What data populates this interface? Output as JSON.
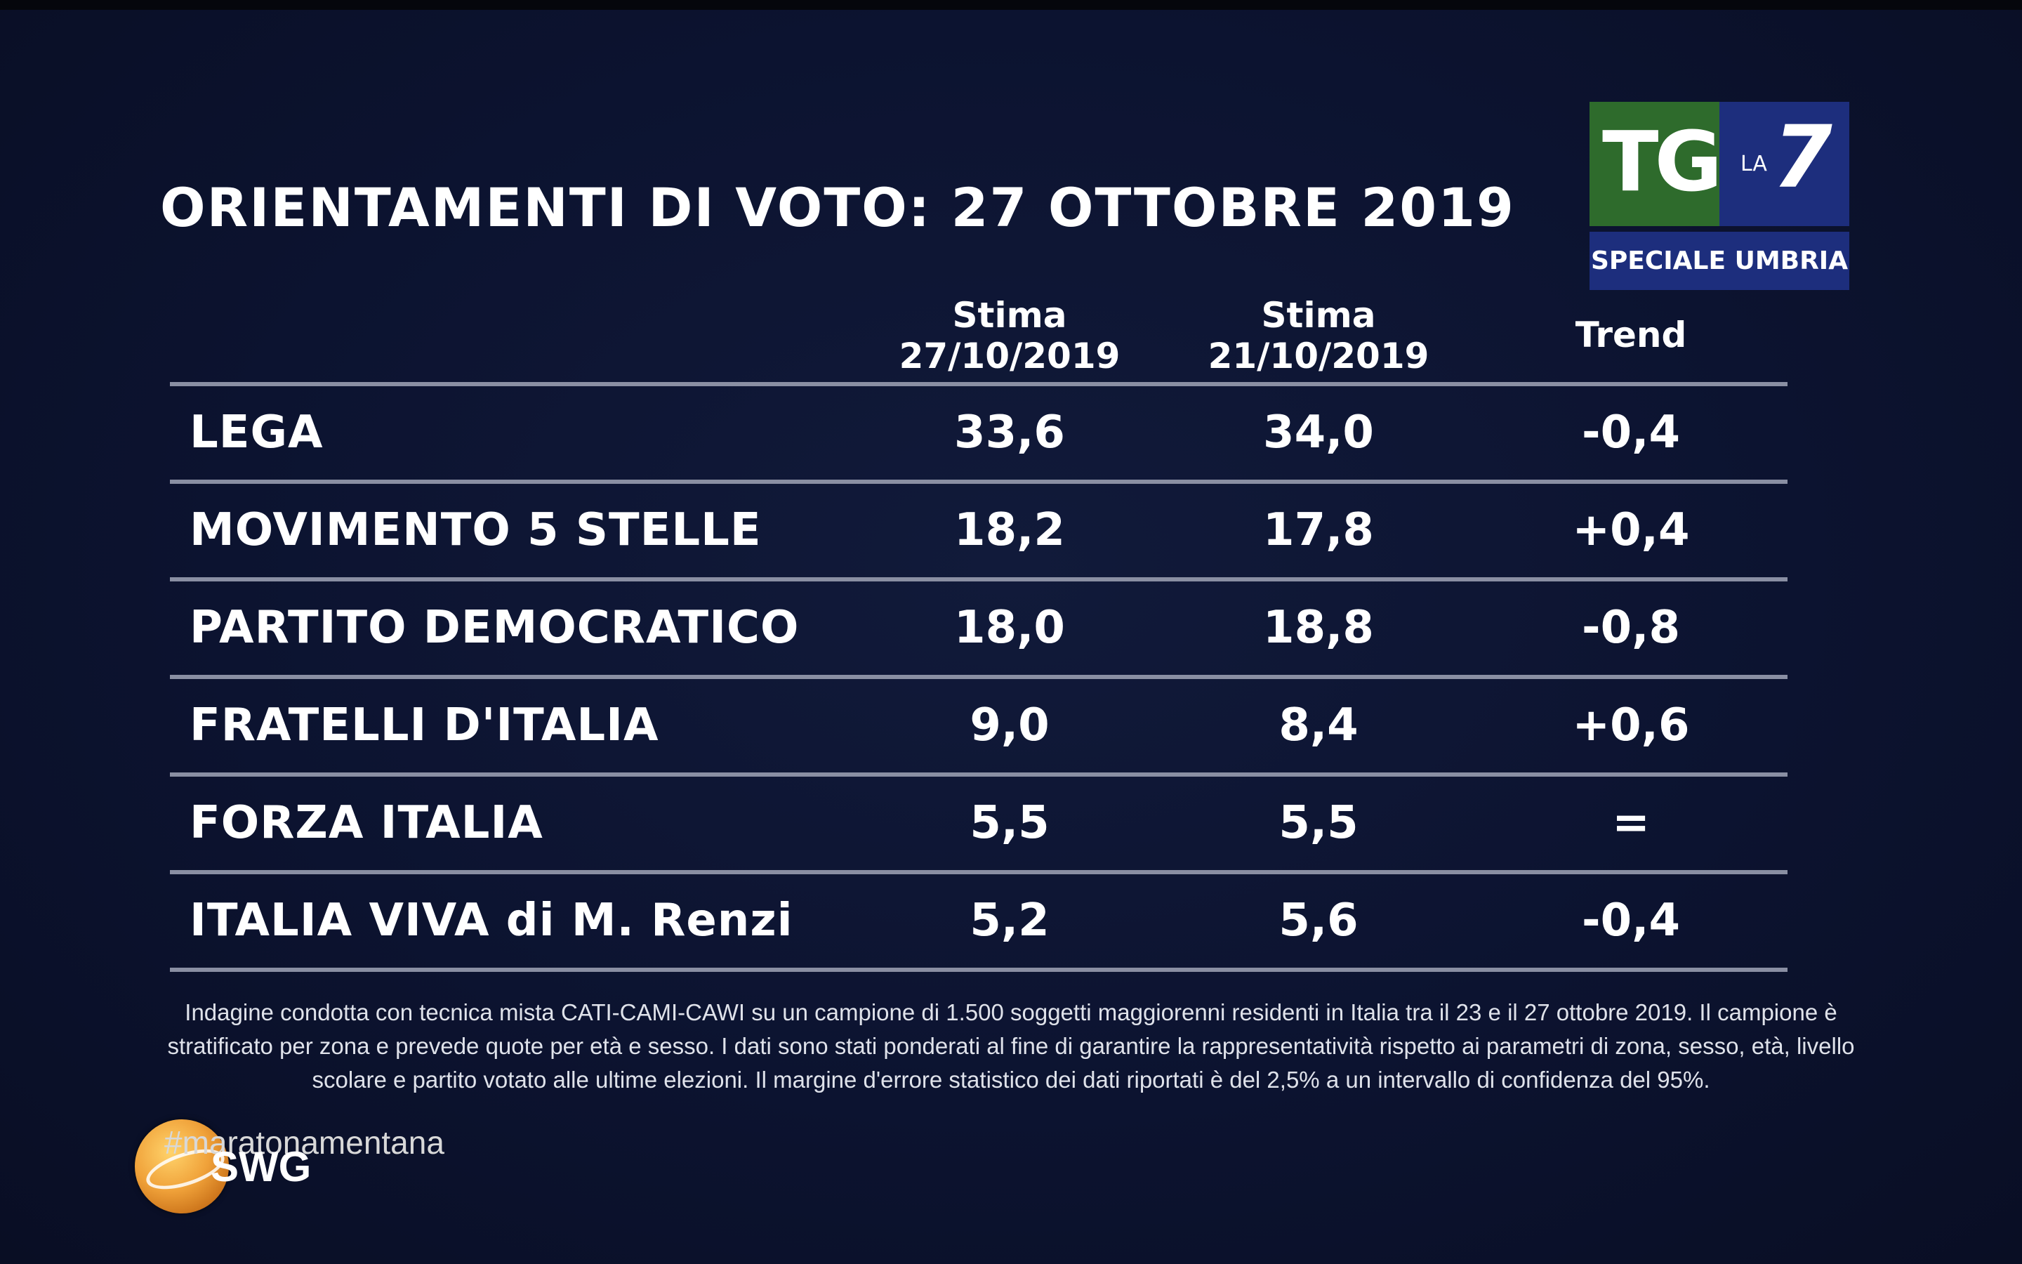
{
  "title": "ORIENTAMENTI DI VOTO: 27 OTTOBRE 2019",
  "logo": {
    "tg": "TG",
    "la": "LA",
    "seven": "7",
    "subtitle": "SPECIALE UMBRIA",
    "colors": {
      "green": "#2e6b2c",
      "blue": "#1d2e7d"
    }
  },
  "columns": [
    {
      "line1": "Stima",
      "line2": "27/10/2019"
    },
    {
      "line1": "Stima",
      "line2": "21/10/2019"
    },
    {
      "line1": "Trend",
      "line2": ""
    }
  ],
  "rows": [
    {
      "party": "LEGA",
      "v1": "33,6",
      "v2": "34,0",
      "trend": "-0,4"
    },
    {
      "party": "MOVIMENTO 5 STELLE",
      "v1": "18,2",
      "v2": "17,8",
      "trend": "+0,4"
    },
    {
      "party": "PARTITO DEMOCRATICO",
      "v1": "18,0",
      "v2": "18,8",
      "trend": "-0,8"
    },
    {
      "party": "FRATELLI D'ITALIA",
      "v1": "9,0",
      "v2": "8,4",
      "trend": "+0,6"
    },
    {
      "party": "FORZA ITALIA",
      "v1": "5,5",
      "v2": "5,5",
      "trend": "="
    },
    {
      "party": "ITALIA VIVA di M. Renzi",
      "v1": "5,2",
      "v2": "5,6",
      "trend": "-0,4"
    }
  ],
  "footnote": "Indagine condotta con tecnica mista CATI-CAMI-CAWI su un campione di 1.500 soggetti maggiorenni residenti in Italia tra il 23 e il 27 ottobre 2019. Il campione è stratificato per zona e prevede quote per età e sesso. I dati sono stati ponderati al fine di garantire la rappresentatività rispetto ai parametri di zona, sesso, età, livello scolare e partito votato alle ultime elezioni. Il margine d'errore statistico dei dati riportati è del 2,5% a un intervallo di confidenza del 95%.",
  "hashtag": "#maratonamentana",
  "brand": "SWG",
  "icons": {
    "brand_globe": "globe-icon"
  },
  "colors": {
    "background": "#0c1330",
    "rule": "#8a8fa3",
    "text": "#ffffff"
  }
}
